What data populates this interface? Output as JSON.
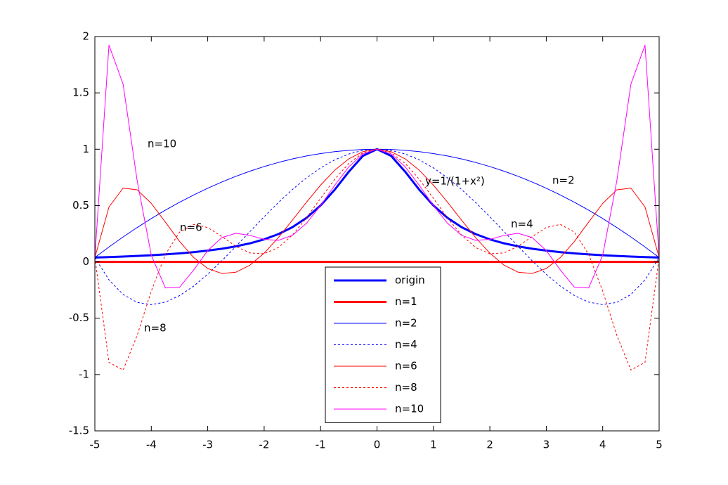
{
  "chart_data": {
    "type": "line",
    "x": [
      -5,
      -4.75,
      -4.5,
      -4.25,
      -4,
      -3.75,
      -3.5,
      -3.25,
      -3,
      -2.75,
      -2.5,
      -2.25,
      -2,
      -1.75,
      -1.5,
      -1.25,
      -1,
      -0.75,
      -0.5,
      -0.25,
      0,
      0.25,
      0.5,
      0.75,
      1,
      1.25,
      1.5,
      1.75,
      2,
      2.25,
      2.5,
      2.75,
      3,
      3.25,
      3.5,
      3.75,
      4,
      4.25,
      4.5,
      4.75,
      5
    ],
    "series": [
      {
        "name": "origin",
        "color": "#0000ff",
        "linewidth": 3,
        "style": "solid",
        "values": [
          0.0385,
          0.0424,
          0.0471,
          0.0525,
          0.0588,
          0.0664,
          0.0755,
          0.0865,
          0.1,
          0.1168,
          0.1379,
          0.1649,
          0.2,
          0.2462,
          0.3077,
          0.3902,
          0.5,
          0.64,
          0.8,
          0.9412,
          1,
          0.9412,
          0.8,
          0.64,
          0.5,
          0.3902,
          0.3077,
          0.2462,
          0.2,
          0.1649,
          0.1379,
          0.1168,
          0.1,
          0.0865,
          0.0755,
          0.0664,
          0.0588,
          0.0525,
          0.0471,
          0.0424,
          0.0385
        ]
      },
      {
        "name": "n=1",
        "color": "#ff0000",
        "linewidth": 3,
        "style": "solid",
        "values": [
          0,
          0,
          0,
          0,
          0,
          0,
          0,
          0,
          0,
          0,
          0,
          0,
          0,
          0,
          0,
          0,
          0,
          0,
          0,
          0,
          0,
          0,
          0,
          0,
          0,
          0,
          0,
          0,
          0,
          0,
          0,
          0,
          0,
          0,
          0,
          0,
          0,
          0,
          0,
          0,
          0
        ]
      },
      {
        "name": "n=2",
        "color": "#0000ff",
        "linewidth": 1,
        "style": "solid",
        "values": [
          0.0385,
          0.1322,
          0.2212,
          0.3053,
          0.3846,
          0.4591,
          0.5288,
          0.5938,
          0.6538,
          0.7091,
          0.7596,
          0.8053,
          0.8462,
          0.8822,
          0.9135,
          0.9399,
          0.9615,
          0.9784,
          0.9904,
          0.9976,
          1,
          0.9976,
          0.9904,
          0.9784,
          0.9615,
          0.9399,
          0.9135,
          0.8822,
          0.8462,
          0.8053,
          0.7596,
          0.7091,
          0.6538,
          0.5938,
          0.5288,
          0.4591,
          0.3846,
          0.3053,
          0.2212,
          0.1322,
          0.0385
        ]
      },
      {
        "name": "n=4",
        "color": "#0000ff",
        "linewidth": 1,
        "style": "dashed",
        "values": [
          0.0385,
          -0.1597,
          -0.2892,
          -0.3596,
          -0.3793,
          -0.3569,
          -0.2998,
          -0.2153,
          -0.1101,
          0.0095,
          0.1379,
          0.2698,
          0.4005,
          0.5258,
          0.6419,
          0.7456,
          0.8342,
          0.9054,
          0.9576,
          0.9893,
          1,
          0.9893,
          0.9576,
          0.9054,
          0.8342,
          0.7456,
          0.6419,
          0.5258,
          0.4005,
          0.2698,
          0.1379,
          0.0095,
          -0.1101,
          -0.2153,
          -0.2998,
          -0.3569,
          -0.3793,
          -0.3596,
          -0.2892,
          -0.1597,
          0.0385
        ]
      },
      {
        "name": "n=6",
        "color": "#ff0000",
        "linewidth": 1,
        "style": "solid",
        "values": [
          0.0385,
          0.487,
          0.6547,
          0.6396,
          0.5191,
          0.3523,
          0.1824,
          0.0392,
          -0.059,
          -0.103,
          -0.0914,
          -0.0285,
          0.0773,
          0.2143,
          0.3696,
          0.5296,
          0.6813,
          0.8128,
          0.9142,
          0.9782,
          1,
          0.9782,
          0.9142,
          0.8128,
          0.6813,
          0.5296,
          0.3696,
          0.2143,
          0.0773,
          -0.0285,
          -0.0914,
          -0.103,
          -0.059,
          0.0392,
          0.1824,
          0.3523,
          0.5191,
          0.6396,
          0.6547,
          0.487,
          0.0385
        ]
      },
      {
        "name": "n=8",
        "color": "#ff0000",
        "linewidth": 1,
        "style": "dashed",
        "values": [
          0.0385,
          -0.8918,
          -0.96,
          -0.6519,
          -0.2587,
          0.0664,
          0.2638,
          0.3327,
          0.3049,
          0.2252,
          0.1379,
          0.0793,
          0.0726,
          0.1267,
          0.2374,
          0.3902,
          0.5636,
          0.7328,
          0.874,
          0.9674,
          1,
          0.9674,
          0.874,
          0.7328,
          0.5636,
          0.3902,
          0.2374,
          0.1267,
          0.0726,
          0.0793,
          0.1379,
          0.2252,
          0.3049,
          0.3327,
          0.2638,
          0.0664,
          -0.2587,
          -0.6519,
          -0.96,
          -0.8918,
          0.0385
        ]
      },
      {
        "name": "n=10",
        "color": "#ff00ff",
        "linewidth": 1,
        "style": "solid",
        "values": [
          0.0385,
          1.9237,
          1.5787,
          0.7195,
          0.0588,
          -0.2314,
          -0.2262,
          -0.0726,
          0.1,
          0.2156,
          0.2537,
          0.2349,
          0.2,
          0.1906,
          0.2354,
          0.3426,
          0.5,
          0.679,
          0.8434,
          0.9586,
          1,
          0.9586,
          0.8434,
          0.679,
          0.5,
          0.3426,
          0.2354,
          0.1906,
          0.2,
          0.2349,
          0.2537,
          0.2156,
          0.1,
          -0.0726,
          -0.2262,
          -0.2314,
          0.0588,
          0.7195,
          1.5787,
          1.9237,
          0.0385
        ]
      }
    ],
    "annotations": [
      "n=10",
      "n=6",
      "n=8",
      "n=2",
      "n=4",
      "y=1/(1+x²)"
    ],
    "xlim": [
      -5,
      5
    ],
    "ylim": [
      -1.5,
      2
    ],
    "xticks": [
      -5,
      -4,
      -3,
      -2,
      -1,
      0,
      1,
      2,
      3,
      4,
      5
    ],
    "yticks": [
      -1.5,
      -1,
      -0.5,
      0,
      0.5,
      1,
      1.5,
      2
    ],
    "grid": false,
    "legend": "bottom-center"
  }
}
